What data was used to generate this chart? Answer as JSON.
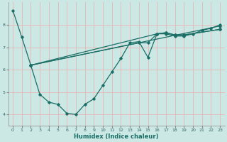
{
  "xlabel": "Humidex (Indice chaleur)",
  "bg_color": "#cce8e4",
  "grid_color": "#e8b4b4",
  "line_color": "#1a6e66",
  "xlim": [
    -0.5,
    23.5
  ],
  "ylim": [
    3.5,
    9.0
  ],
  "yticks": [
    4,
    5,
    6,
    7,
    8
  ],
  "xticks": [
    0,
    1,
    2,
    3,
    4,
    5,
    6,
    7,
    8,
    9,
    10,
    11,
    12,
    13,
    14,
    15,
    16,
    17,
    18,
    19,
    20,
    21,
    22,
    23
  ],
  "series1": {
    "x": [
      0,
      1,
      2,
      3,
      4,
      5,
      6,
      7,
      8,
      9,
      10,
      11,
      12,
      13,
      14,
      15,
      16,
      17,
      18,
      19,
      20,
      21,
      22,
      23
    ],
    "y": [
      8.65,
      7.45,
      6.2,
      4.9,
      4.55,
      4.45,
      4.05,
      4.0,
      4.45,
      4.7,
      5.3,
      5.9,
      6.5,
      7.2,
      7.25,
      6.55,
      7.6,
      7.6,
      7.5,
      7.5,
      7.6,
      7.75,
      7.85,
      8.0
    ]
  },
  "series_straight": [
    {
      "x": [
        2,
        23
      ],
      "y": [
        6.2,
        7.95
      ]
    },
    {
      "x": [
        2,
        16,
        17,
        18,
        19,
        23
      ],
      "y": [
        6.2,
        7.6,
        7.65,
        7.55,
        7.55,
        7.8
      ]
    },
    {
      "x": [
        2,
        14,
        15,
        16,
        17,
        18,
        19,
        23
      ],
      "y": [
        6.2,
        7.2,
        7.2,
        7.6,
        7.65,
        7.55,
        7.55,
        7.8
      ]
    }
  ]
}
